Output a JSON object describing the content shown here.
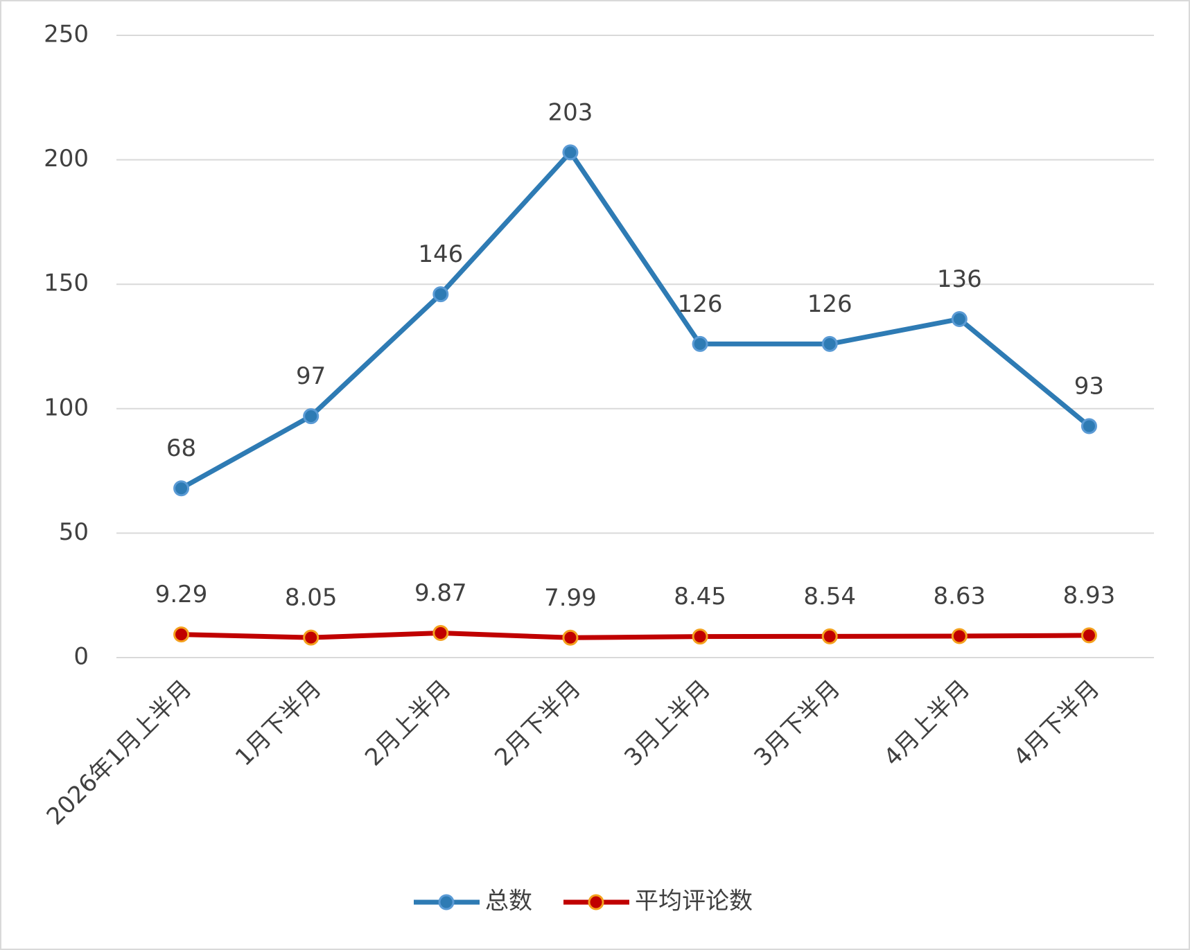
{
  "chart_data": {
    "type": "line",
    "categories": [
      "2026年1月上半月",
      "1月下半月",
      "2月上半月",
      "2月下半月",
      "3月上半月",
      "3月下半月",
      "4月上半月",
      "4月下半月"
    ],
    "series": [
      {
        "name": "总数",
        "color": "#2e7bb4",
        "marker_stroke": "#5b9bd5",
        "values": [
          68,
          97,
          146,
          203,
          126,
          126,
          136,
          93
        ]
      },
      {
        "name": "平均评论数",
        "color": "#c00000",
        "marker_stroke": "#f4a11e",
        "values": [
          9.29,
          8.05,
          9.87,
          7.99,
          8.45,
          8.54,
          8.63,
          8.93
        ]
      }
    ],
    "ylim": [
      0,
      250
    ],
    "yticks": [
      0,
      50,
      100,
      150,
      200,
      250
    ],
    "grid": true,
    "legend": "bottom"
  }
}
